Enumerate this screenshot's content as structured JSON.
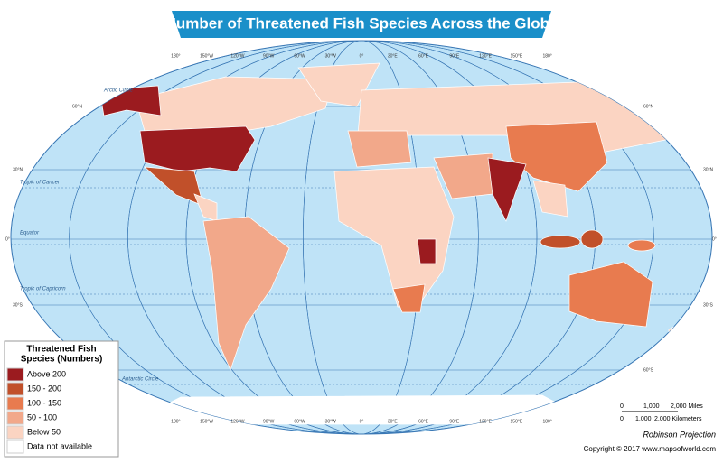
{
  "title": "Number of Threatened Fish Species Across the Globe",
  "legend": {
    "title": [
      "Threatened Fish",
      "Species (Numbers)"
    ],
    "items": [
      {
        "label": "Above 200",
        "color": "#9b1b1f"
      },
      {
        "label": "150 - 200",
        "color": "#c1502a"
      },
      {
        "label": "100 - 150",
        "color": "#e87b4f"
      },
      {
        "label": "50 - 100",
        "color": "#f2a88a"
      },
      {
        "label": "Below 50",
        "color": "#fbd4c2"
      },
      {
        "label": "Data not available",
        "color": "#ffffff"
      }
    ]
  },
  "longitudes": [
    "180°",
    "150°W",
    "120°W",
    "90°W",
    "60°W",
    "30°W",
    "0°",
    "30°E",
    "60°E",
    "90°E",
    "120°E",
    "150°E",
    "180°"
  ],
  "latitudes": {
    "n60": "60°N",
    "n30": "30°N",
    "eq": "0°",
    "s30": "30°S",
    "s60": "60°S"
  },
  "lines": {
    "arctic": "Arctic Circle",
    "cancer": "Tropic of Cancer",
    "equator": "Equator",
    "capricorn": "Tropic of Capricorn",
    "antarctic": "Antarctic Circle"
  },
  "scale": {
    "miles": [
      "0",
      "1,000",
      "2,000 Miles"
    ],
    "km": [
      "0",
      "1,000",
      "2,000 Kilometers"
    ]
  },
  "projection": "Robinson Projection",
  "copyright": "Copyright © 2017 www.mapsofworld.com"
}
